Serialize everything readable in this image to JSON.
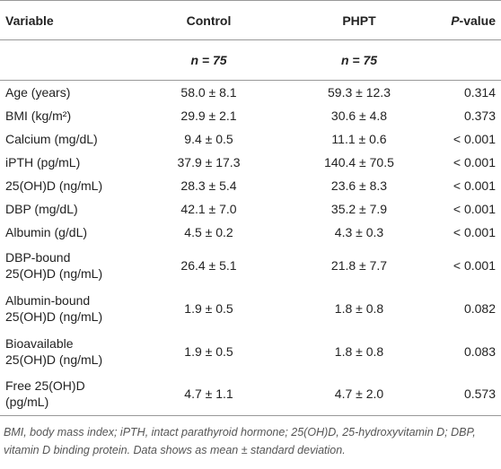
{
  "table": {
    "header": [
      "Variable",
      "Control",
      "PHPT",
      {
        "italic": "P",
        "text": "-value"
      }
    ],
    "subheader": [
      "",
      "n = 75",
      "n = 75",
      ""
    ],
    "rows": [
      [
        "Age (years)",
        "58.0 ± 8.1",
        "59.3 ± 12.3",
        "0.314"
      ],
      [
        "BMI (kg/m²)",
        "29.9 ± 2.1",
        "30.6 ± 4.8",
        "0.373"
      ],
      [
        "Calcium (mg/dL)",
        "9.4 ± 0.5",
        "11.1 ± 0.6",
        "< 0.001"
      ],
      [
        "iPTH (pg/mL)",
        "37.9 ± 17.3",
        "140.4 ± 70.5",
        "< 0.001"
      ],
      [
        "25(OH)D (ng/mL)",
        "28.3 ± 5.4",
        "23.6 ± 8.3",
        "< 0.001"
      ],
      [
        "DBP (mg/dL)",
        "42.1 ± 7.0",
        "35.2 ± 7.9",
        "< 0.001"
      ],
      [
        "Albumin (g/dL)",
        "4.5 ± 0.2",
        "4.3 ± 0.3",
        "< 0.001"
      ],
      [
        "DBP-bound\n25(OH)D (ng/mL)",
        "26.4 ± 5.1",
        "21.8 ± 7.7",
        "< 0.001"
      ],
      [
        "Albumin-bound\n25(OH)D (ng/mL)",
        "1.9 ± 0.5",
        "1.8 ± 0.8",
        "0.082"
      ],
      [
        "Bioavailable\n25(OH)D (ng/mL)",
        "1.9 ± 0.5",
        "1.8 ± 0.8",
        "0.083"
      ],
      [
        "Free 25(OH)D\n(pg/mL)",
        "4.7 ± 1.1",
        "4.7 ± 2.0",
        "0.573"
      ]
    ]
  },
  "footnote": "BMI, body mass index; iPTH, intact parathyroid hormone; 25(OH)D, 25-hydroxyvitamin D; DBP, vitamin D binding protein. Data shows as mean ± standard deviation."
}
